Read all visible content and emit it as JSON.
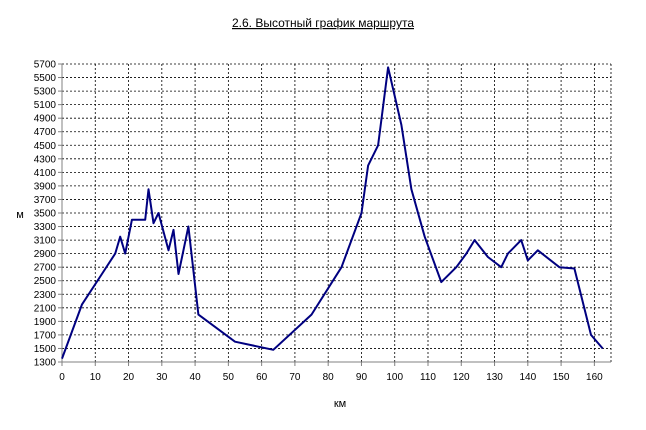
{
  "chart_data": {
    "type": "line",
    "title": "2.6. Высотный график маршрута",
    "xlabel": "км",
    "ylabel": "м",
    "xlim": [
      0,
      165
    ],
    "ylim": [
      1300,
      5700
    ],
    "x_ticks": [
      0,
      10,
      20,
      30,
      40,
      50,
      60,
      70,
      80,
      90,
      100,
      110,
      120,
      130,
      140,
      150,
      160
    ],
    "y_ticks": [
      1300,
      1500,
      1700,
      1900,
      2100,
      2300,
      2500,
      2700,
      2900,
      3100,
      3300,
      3500,
      3700,
      3900,
      4100,
      4300,
      4500,
      4700,
      4900,
      5100,
      5300,
      5500,
      5700
    ],
    "grid": true,
    "series": [
      {
        "color": "#000080",
        "x": [
          0,
          6,
          12,
          16,
          17.5,
          19,
          21,
          25,
          26,
          27.5,
          29,
          32,
          33.5,
          35,
          38,
          41,
          52,
          63.5,
          75,
          84,
          90,
          92,
          95,
          98,
          102,
          105,
          109,
          114,
          118.5,
          121.5,
          124,
          128,
          132,
          134,
          138,
          140,
          143,
          149.5,
          154,
          159,
          162.5
        ],
        "y": [
          1350,
          2150,
          2600,
          2900,
          3150,
          2900,
          3400,
          3400,
          3850,
          3350,
          3500,
          2950,
          3250,
          2600,
          3300,
          2000,
          1600,
          1480,
          2000,
          2700,
          3500,
          4200,
          4500,
          5650,
          4800,
          3850,
          3150,
          2480,
          2700,
          2900,
          3100,
          2850,
          2700,
          2900,
          3100,
          2800,
          2950,
          2700,
          2680,
          1700,
          1500
        ]
      }
    ]
  }
}
